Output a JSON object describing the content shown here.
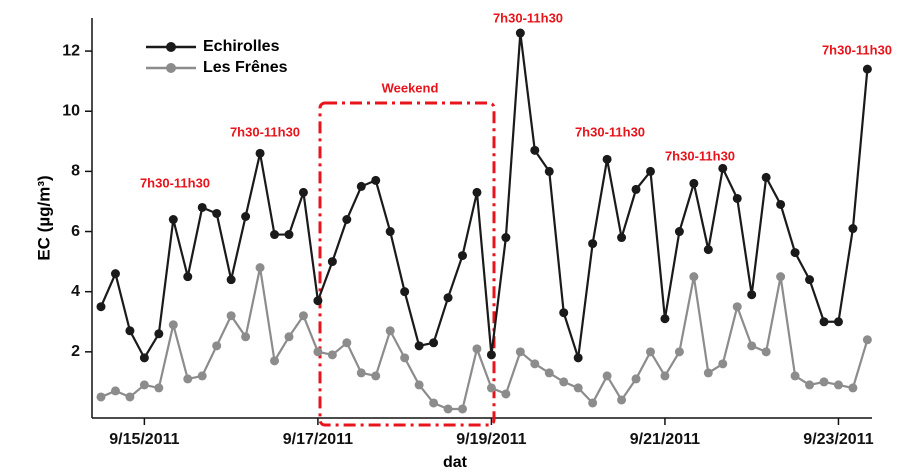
{
  "chart_data": {
    "type": "line",
    "x_label": "dat",
    "y_label": "EC (µg/m³)",
    "categories": [
      null,
      null,
      null,
      "9/15/2011",
      null,
      null,
      null,
      null,
      null,
      null,
      null,
      null,
      null,
      null,
      null,
      "9/17/2011",
      null,
      null,
      null,
      null,
      null,
      null,
      null,
      null,
      null,
      null,
      null,
      "9/19/2011",
      null,
      null,
      null,
      null,
      null,
      null,
      null,
      null,
      null,
      null,
      null,
      "9/21/2011",
      null,
      null,
      null,
      null,
      null,
      null,
      null,
      null,
      null,
      null,
      null,
      "9/23/2011",
      null,
      null
    ],
    "series": [
      {
        "name": "Echirolles",
        "color": "#1a1a1a",
        "values": [
          3.5,
          4.6,
          2.7,
          1.8,
          2.6,
          6.4,
          4.5,
          6.8,
          6.6,
          4.4,
          6.5,
          8.6,
          5.9,
          5.9,
          7.3,
          3.7,
          5.0,
          6.4,
          7.5,
          7.7,
          6.0,
          4.0,
          2.2,
          2.3,
          3.8,
          5.2,
          7.3,
          1.9,
          5.8,
          12.6,
          8.7,
          8.0,
          3.3,
          1.8,
          5.6,
          8.4,
          5.8,
          7.4,
          8.0,
          3.1,
          6.0,
          7.6,
          5.4,
          8.1,
          7.1,
          3.9,
          7.8,
          6.9,
          5.3,
          4.4,
          3.0,
          3.0,
          6.1,
          11.4
        ]
      },
      {
        "name": "Les Frênes",
        "color": "#8c8c8c",
        "values": [
          0.5,
          0.7,
          0.5,
          0.9,
          0.8,
          2.9,
          1.1,
          1.2,
          2.2,
          3.2,
          2.5,
          4.8,
          1.7,
          2.5,
          3.2,
          2.0,
          1.9,
          2.3,
          1.3,
          1.2,
          2.7,
          1.8,
          0.9,
          0.3,
          0.1,
          0.1,
          2.1,
          0.8,
          0.6,
          2.0,
          1.6,
          1.3,
          1.0,
          0.8,
          0.3,
          1.2,
          0.4,
          1.1,
          2.0,
          1.2,
          2.0,
          4.5,
          1.3,
          1.6,
          3.5,
          2.2,
          2.0,
          4.5,
          1.2,
          0.9,
          1.0,
          0.9,
          0.8,
          2.4
        ]
      }
    ],
    "ylim": [
      -0.2,
      13.1
    ],
    "yticks": [
      2,
      4,
      6,
      8,
      10,
      12
    ],
    "annotations": [
      "7h30-11h30",
      "7h30-11h30",
      "Weekend",
      "7h30-11h30",
      "7h30-11h30",
      "7h30-11h30",
      "7h30-11h30"
    ],
    "annotation_color": "#e8141b",
    "legend": "upper left"
  }
}
